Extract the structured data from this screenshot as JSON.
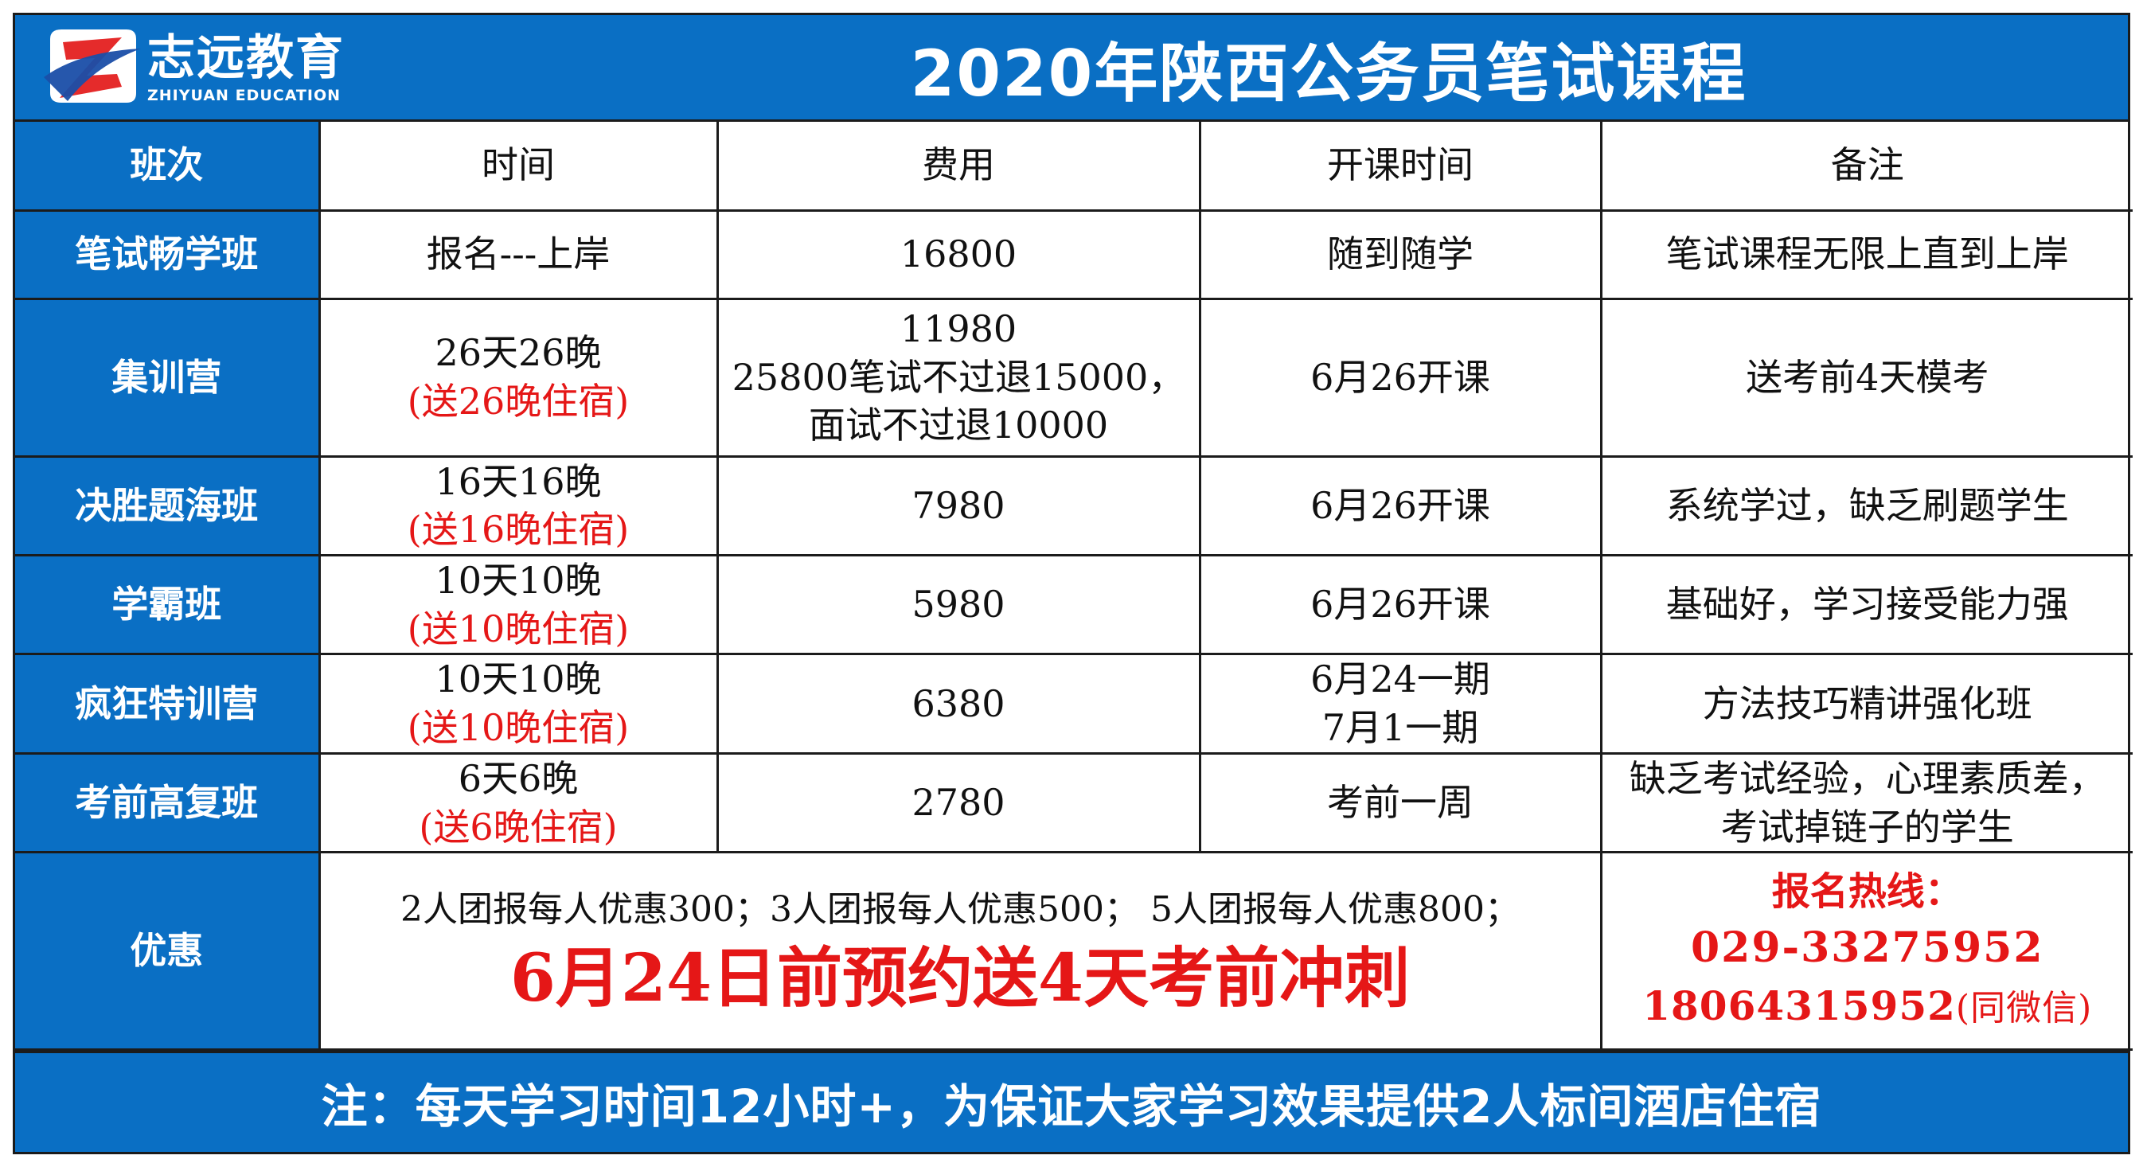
{
  "brand": {
    "name_cn": "志远教育",
    "name_en": "ZHIYUAN EDUCATION",
    "colors": {
      "header_blue": "#0a6fc4",
      "accent_red": "#e51717"
    }
  },
  "title": "2020年陕西公务员笔试课程",
  "columns": [
    "班次",
    "时间",
    "费用",
    "开课时间",
    "备注"
  ],
  "rows": [
    {
      "class_name": "笔试畅学班",
      "time": [
        "报名---上岸"
      ],
      "time_note": "",
      "fee": [
        "16800"
      ],
      "start": [
        "随到随学"
      ],
      "remark": [
        "笔试课程无限上直到上岸"
      ]
    },
    {
      "class_name": "集训营",
      "time": [
        "26天26晚"
      ],
      "time_note": "(送26晚住宿)",
      "fee": [
        "11980",
        "25800笔试不过退15000，",
        "面试不过退10000"
      ],
      "start": [
        "6月26开课"
      ],
      "remark": [
        "送考前4天模考"
      ]
    },
    {
      "class_name": "决胜题海班",
      "time": [
        "16天16晚"
      ],
      "time_note": "(送16晚住宿)",
      "fee": [
        "7980"
      ],
      "start": [
        "6月26开课"
      ],
      "remark": [
        "系统学过，缺乏刷题学生"
      ]
    },
    {
      "class_name": "学霸班",
      "time": [
        "10天10晚"
      ],
      "time_note": "(送10晚住宿)",
      "fee": [
        "5980"
      ],
      "start": [
        "6月26开课"
      ],
      "remark": [
        "基础好，学习接受能力强"
      ]
    },
    {
      "class_name": "疯狂特训营",
      "time": [
        "10天10晚"
      ],
      "time_note": "(送10晚住宿)",
      "fee": [
        "6380"
      ],
      "start": [
        "6月24一期",
        "7月1一期"
      ],
      "remark": [
        "方法技巧精讲强化班"
      ]
    },
    {
      "class_name": "考前高复班",
      "time": [
        "6天6晚"
      ],
      "time_note": "(送6晚住宿)",
      "fee": [
        "2780"
      ],
      "start": [
        "考前一周"
      ],
      "remark": [
        "缺乏考试经验，心理素质差，",
        "考试掉链子的学生"
      ]
    }
  ],
  "discount": {
    "label": "优惠",
    "group_offer": "2人团报每人优惠300；3人团报每人优惠500； 5人团报每人优惠800；",
    "promo": "6月24日前预约送4天考前冲刺"
  },
  "hotline": {
    "title": "报名热线：",
    "phone": "029-33275952",
    "mobile": "18064315952",
    "mobile_note": "(同微信)"
  },
  "footer_note": "注：每天学习时间12小时+，为保证大家学习效果提供2人标间酒店住宿"
}
